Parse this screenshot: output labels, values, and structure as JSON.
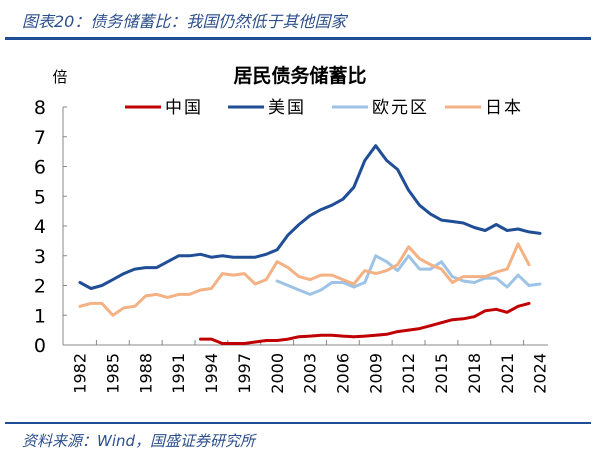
{
  "header": {
    "title": "图表20：债务储蓄比：我国仍然低于其他国家"
  },
  "footer": {
    "source": "资料来源：Wind，国盛证券研究所"
  },
  "chart_data": {
    "type": "line",
    "title": "居民债务储蓄比",
    "ylabel": "倍",
    "ylim": [
      0,
      8
    ],
    "yticks": [
      0,
      1,
      2,
      3,
      4,
      5,
      6,
      7,
      8
    ],
    "xlim": [
      1982,
      2024
    ],
    "xticks": [
      1982,
      1985,
      1988,
      1991,
      1994,
      1997,
      2000,
      2003,
      2006,
      2009,
      2012,
      2015,
      2018,
      2021,
      2024
    ],
    "grid": false,
    "legend": "top",
    "series": [
      {
        "name": "中国",
        "color": "#c00000",
        "start": 1993,
        "values": [
          0.2,
          0.2,
          0.05,
          0.05,
          0.05,
          0.1,
          0.15,
          0.15,
          0.2,
          0.28,
          0.3,
          0.33,
          0.33,
          0.3,
          0.28,
          0.3,
          0.33,
          0.36,
          0.45,
          0.5,
          0.55,
          0.65,
          0.75,
          0.85,
          0.88,
          0.95,
          1.15,
          1.2,
          1.1,
          1.3,
          1.4
        ]
      },
      {
        "name": "美国",
        "color": "#1f4e96",
        "start": 1982,
        "values": [
          2.1,
          1.9,
          2.0,
          2.2,
          2.4,
          2.55,
          2.6,
          2.6,
          2.8,
          3.0,
          3.0,
          3.05,
          2.95,
          3.0,
          2.95,
          2.95,
          2.95,
          3.05,
          3.2,
          3.7,
          4.05,
          4.35,
          4.55,
          4.7,
          4.9,
          5.3,
          6.2,
          6.7,
          6.2,
          5.9,
          5.2,
          4.7,
          4.4,
          4.2,
          4.15,
          4.1,
          3.95,
          3.85,
          4.05,
          3.85,
          3.9,
          3.8,
          3.75
        ]
      },
      {
        "name": "欧元区",
        "color": "#9dc3e6",
        "start": 2000,
        "values": [
          2.15,
          2.0,
          1.85,
          1.7,
          1.85,
          2.1,
          2.1,
          1.95,
          2.1,
          3.0,
          2.8,
          2.5,
          3.0,
          2.55,
          2.55,
          2.8,
          2.3,
          2.15,
          2.1,
          2.25,
          2.25,
          1.95,
          2.35,
          2.0,
          2.05
        ]
      },
      {
        "name": "日本",
        "color": "#f4b183",
        "start": 1982,
        "values": [
          1.3,
          1.4,
          1.4,
          1.0,
          1.25,
          1.3,
          1.65,
          1.7,
          1.6,
          1.7,
          1.7,
          1.85,
          1.9,
          2.4,
          2.35,
          2.4,
          2.05,
          2.2,
          2.8,
          2.6,
          2.3,
          2.2,
          2.35,
          2.35,
          2.2,
          2.05,
          2.5,
          2.4,
          2.5,
          2.7,
          3.3,
          2.9,
          2.7,
          2.55,
          2.1,
          2.3,
          2.3,
          2.3,
          2.45,
          2.55,
          3.4,
          2.7
        ]
      }
    ]
  }
}
